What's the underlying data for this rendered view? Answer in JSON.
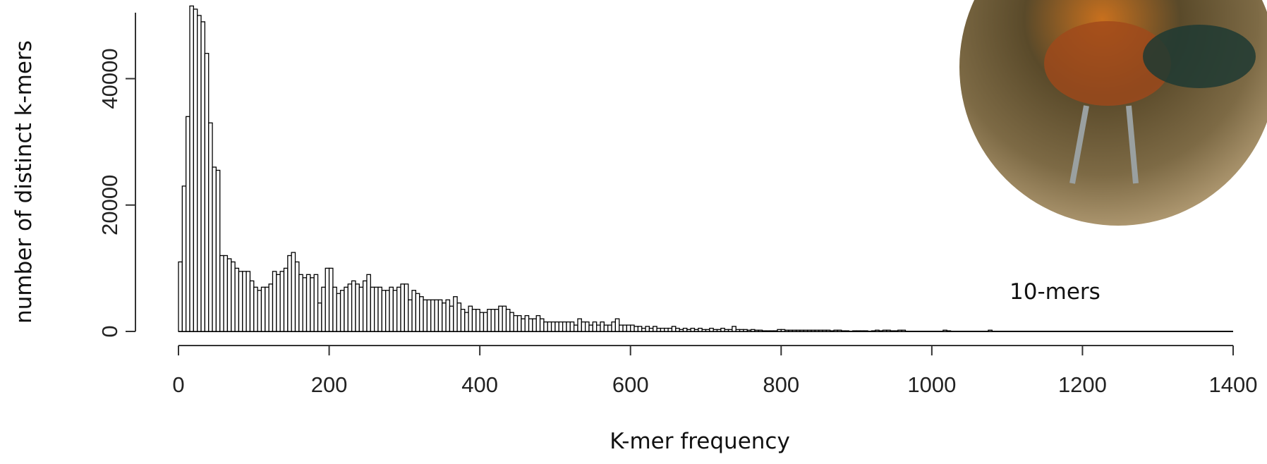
{
  "chart_data": {
    "type": "histogram",
    "xlabel": "K-mer frequency",
    "ylabel": "number of distinct k-mers",
    "annotation": "10-mers",
    "color": "#ffffff",
    "edgecolor": "#000000",
    "xlim": [
      0,
      1400
    ],
    "xticks": [
      0,
      200,
      400,
      600,
      800,
      1000,
      1200,
      1400
    ],
    "ylim": [
      0,
      52000
    ],
    "yticks": [
      0,
      20000,
      40000
    ],
    "bins": [
      0,
      5,
      10,
      15,
      20,
      25,
      30,
      35,
      40,
      45,
      50,
      55,
      60,
      65,
      70,
      75,
      80,
      85,
      90,
      95,
      100,
      105,
      110,
      115,
      120,
      125,
      130,
      135,
      140,
      145,
      150,
      155,
      160,
      165,
      170,
      175,
      180,
      185,
      190,
      195,
      200,
      205,
      210,
      215,
      220,
      225,
      230,
      235,
      240,
      245,
      250,
      255,
      260,
      265,
      270,
      275,
      280,
      285,
      290,
      295,
      300,
      305,
      310,
      315,
      320,
      325,
      330,
      335,
      340,
      345,
      350,
      355,
      360,
      365,
      370,
      375,
      380,
      385,
      390,
      395,
      400,
      405,
      410,
      415,
      420,
      425,
      430,
      435,
      440,
      445,
      450,
      455,
      460,
      465,
      470,
      475,
      480,
      485,
      490,
      495,
      500,
      505,
      510,
      515,
      520,
      525,
      530,
      535,
      540,
      545,
      550,
      555,
      560,
      565,
      570,
      575,
      580,
      585,
      590,
      595,
      600,
      605,
      610,
      615,
      620,
      625,
      630,
      635,
      640,
      645,
      650,
      655,
      660,
      665,
      670,
      675,
      680,
      685,
      690,
      695,
      700,
      705,
      710,
      715,
      720,
      725,
      730,
      735,
      740,
      745,
      750,
      755,
      760,
      765,
      770,
      775,
      780,
      785,
      790,
      795,
      800,
      805,
      810,
      815,
      820,
      825,
      830,
      835,
      840,
      845,
      850,
      855,
      860,
      865,
      870,
      875,
      880,
      885,
      890,
      895,
      900,
      905,
      910,
      915,
      920,
      925,
      930,
      935,
      940,
      945,
      950,
      955,
      960,
      965,
      970,
      975,
      980,
      985,
      990,
      995,
      1000,
      1005,
      1010,
      1015,
      1020,
      1025,
      1030,
      1035,
      1040,
      1045,
      1050,
      1055,
      1060,
      1065,
      1070,
      1075,
      1080,
      1085,
      1090,
      1095,
      1100
    ],
    "values": [
      11000,
      23000,
      34000,
      51500,
      51000,
      50000,
      49000,
      44000,
      33000,
      26000,
      25500,
      12000,
      12000,
      11500,
      11000,
      10000,
      9500,
      9500,
      9500,
      8000,
      7000,
      6500,
      7000,
      7000,
      7500,
      9500,
      9000,
      9500,
      10000,
      12000,
      12500,
      11000,
      9000,
      8500,
      9000,
      8500,
      9000,
      4500,
      7000,
      10000,
      10000,
      7000,
      6000,
      6500,
      7000,
      7500,
      8000,
      7500,
      7000,
      8000,
      9000,
      7000,
      7000,
      7000,
      6500,
      6500,
      7000,
      6500,
      7000,
      7500,
      7500,
      5000,
      6500,
      6000,
      5500,
      5000,
      5000,
      5000,
      5000,
      5000,
      4500,
      5000,
      4000,
      5500,
      4500,
      3500,
      3000,
      4000,
      3500,
      3500,
      3000,
      3000,
      3500,
      3500,
      3500,
      4000,
      4000,
      3500,
      3000,
      2500,
      2500,
      2000,
      2500,
      2000,
      2000,
      2500,
      2000,
      1500,
      1500,
      1500,
      1500,
      1500,
      1500,
      1500,
      1500,
      1000,
      2000,
      1500,
      1500,
      1000,
      1500,
      1000,
      1500,
      1000,
      1000,
      1500,
      2000,
      1000,
      1000,
      1000,
      1000,
      800,
      800,
      500,
      800,
      500,
      800,
      500,
      500,
      500,
      500,
      800,
      500,
      300,
      500,
      300,
      500,
      300,
      500,
      300,
      300,
      500,
      300,
      300,
      500,
      300,
      300,
      800,
      300,
      300,
      300,
      200,
      300,
      200,
      200,
      100,
      100,
      100,
      100,
      300,
      300,
      200,
      200,
      200,
      200,
      200,
      200,
      200,
      200,
      200,
      200,
      200,
      200,
      100,
      200,
      200,
      100,
      100,
      0,
      100,
      100,
      100,
      100,
      0,
      100,
      200,
      100,
      200,
      200,
      100,
      100,
      200,
      200,
      0,
      0,
      0,
      0,
      0,
      0,
      0,
      0,
      0,
      0,
      200,
      100,
      0,
      0,
      0,
      0,
      0,
      0,
      0,
      0,
      0,
      0,
      200,
      0,
      0,
      0,
      0
    ]
  }
}
